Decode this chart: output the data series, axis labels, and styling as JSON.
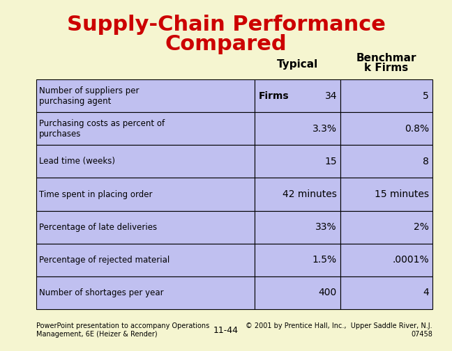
{
  "title_line1": "Supply-Chain Performance",
  "title_line2": "Compared",
  "title_color": "#cc0000",
  "background_color": "#f5f5d0",
  "table_bg_color": "#c0c0f0",
  "table_label_bg": "#c0c0f0",
  "col_header_typical": "Typical",
  "col_header_benchmark_line1": "Benchmar",
  "col_header_benchmark_line2": "k Firms",
  "rows": [
    [
      "Number of suppliers per\npurchasing agent",
      "Firms   34",
      "5"
    ],
    [
      "Purchasing costs as percent of\npurchases",
      "3.3%",
      "0.8%"
    ],
    [
      "Lead time (weeks)",
      "15",
      "8"
    ],
    [
      "Time spent in placing order",
      "42 minutes",
      "15 minutes"
    ],
    [
      "Percentage of late deliveries",
      "33%",
      "2%"
    ],
    [
      "Percentage of rejected material",
      "1.5%",
      ".0001%"
    ],
    [
      "Number of shortages per year",
      "400",
      "4"
    ]
  ],
  "row0_typical_bold": "Firms",
  "row0_typical_value": "34",
  "footer_left": "PowerPoint presentation to accompany Operations\nManagement, 6E (Heizer & Render)",
  "footer_center": "11-44",
  "footer_right": "© 2001 by Prentice Hall, Inc.,  Upper Saddle River, N.J.\n07458",
  "footer_fontsize": 7,
  "title_fontsize": 22,
  "header_fontsize": 11,
  "label_fontsize": 8.5,
  "value_fontsize": 10
}
